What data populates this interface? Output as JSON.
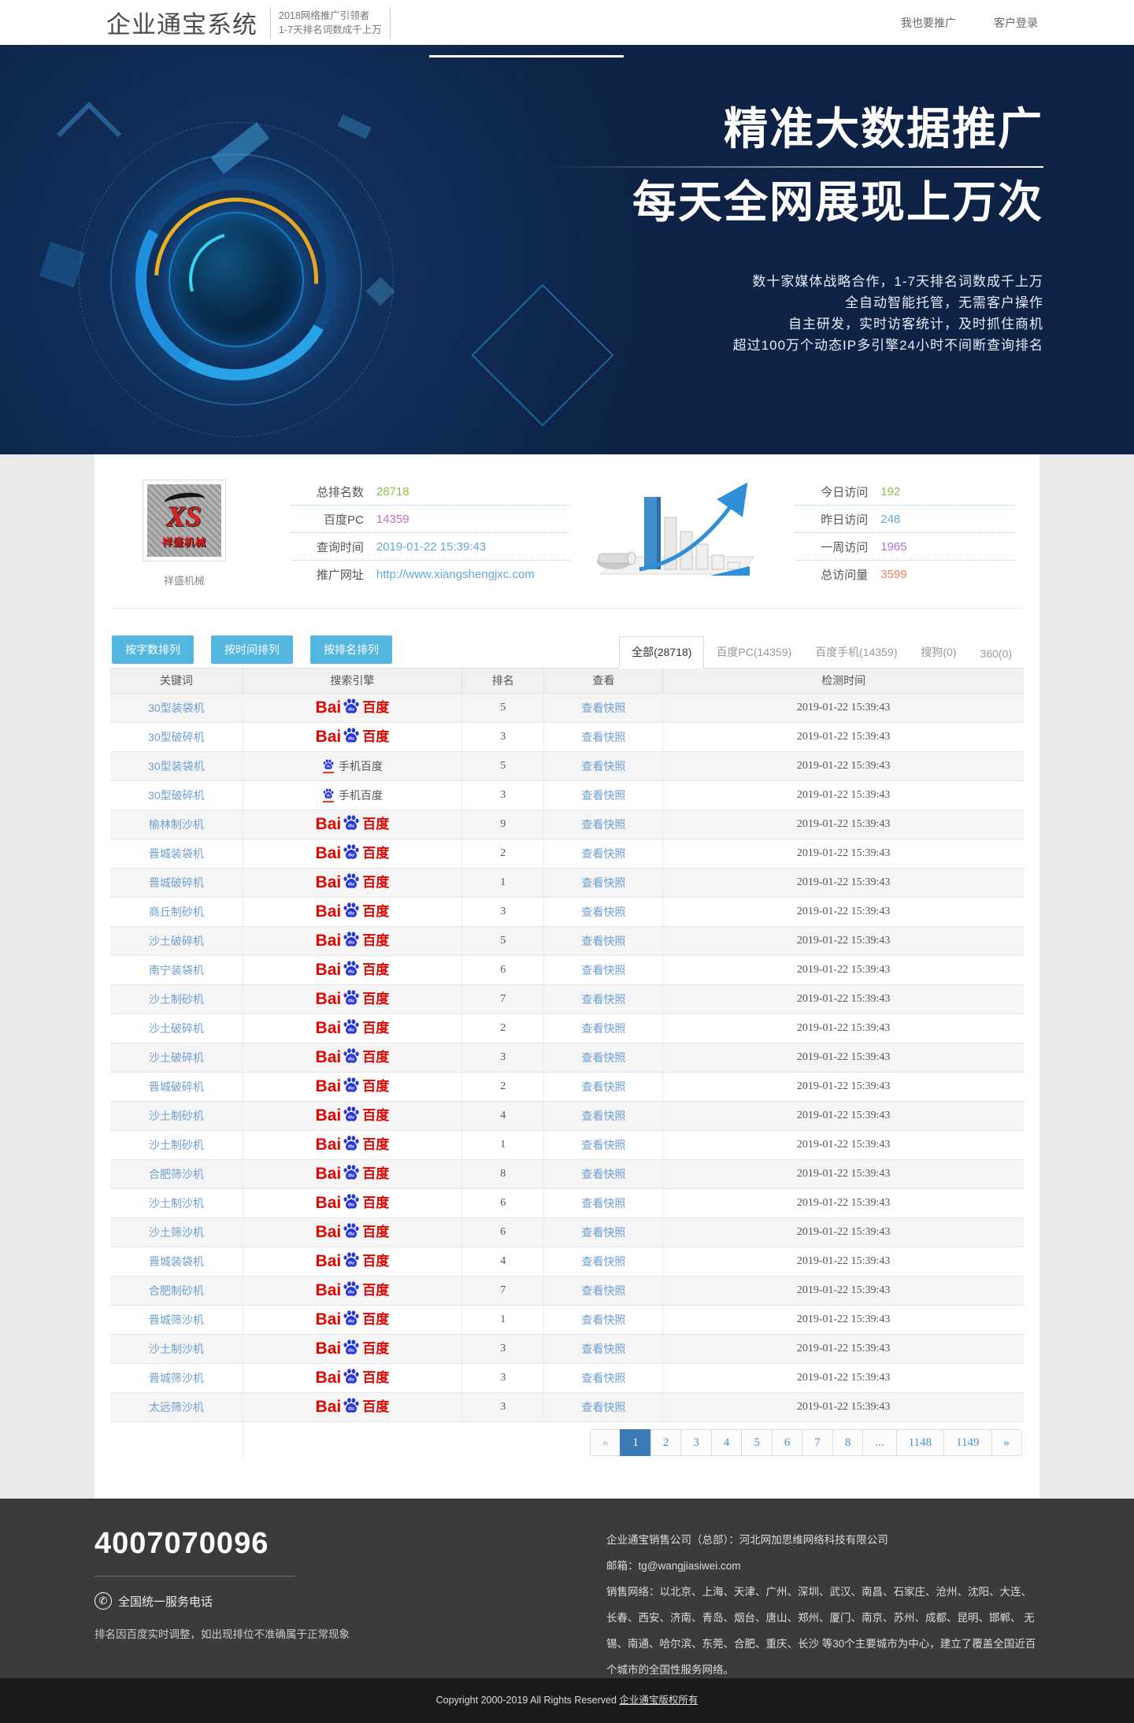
{
  "header": {
    "logo": "企业通宝系统",
    "tagline_line1": "2018网络推广引领者",
    "tagline_line2": "1-7天排名词数成千上万",
    "nav": [
      {
        "label": "我也要推广"
      },
      {
        "label": "客户登录"
      }
    ]
  },
  "hero": {
    "headline1": "精准大数据推广",
    "headline2": "每天全网展现上万次",
    "desc_lines": [
      "数十家媒体战略合作，1-7天排名词数成千上万",
      "全自动智能托管，无需客户操作",
      "自主研发，实时访客统计，及时抓住商机",
      "超过100万个动态IP多引擎24小时不间断查询排名"
    ]
  },
  "stats": {
    "logo_text": "XS",
    "logo_caption": "祥盛机械",
    "site_name": "祥盛机械",
    "left": [
      {
        "label": "总排名数",
        "value": "28718",
        "color": "#8fbf45"
      },
      {
        "label": "百度PC",
        "value": "14359",
        "color": "#c46ec4"
      },
      {
        "label": "查询时间",
        "value": "2019-01-22 15:39:43",
        "color": "#64a8dc"
      },
      {
        "label": "推广网址",
        "value": "http://www.xiangshengjxc.com",
        "color": "#64a8dc"
      }
    ],
    "right": [
      {
        "label": "今日访问",
        "value": "192",
        "color": "#8fbf45"
      },
      {
        "label": "昨日访问",
        "value": "248",
        "color": "#64a8dc"
      },
      {
        "label": "一周访问",
        "value": "1965",
        "color": "#b173d8"
      },
      {
        "label": "总访问量",
        "value": "3599",
        "color": "#f07d5a"
      }
    ]
  },
  "toolbar": {
    "sort_buttons": [
      "按字数排列",
      "按时间排列",
      "按排名排列"
    ],
    "tabs": [
      {
        "label": "全部(28718)",
        "active": true
      },
      {
        "label": "百度PC(14359)",
        "active": false
      },
      {
        "label": "百度手机(14359)",
        "active": false
      },
      {
        "label": "搜狗(0)",
        "active": false
      },
      {
        "label": "360(0)",
        "active": false
      }
    ]
  },
  "table": {
    "headers": [
      "关键词",
      "搜索引擎",
      "排名",
      "查看",
      "检测时间"
    ],
    "snapshot_label": "查看快照",
    "engines": {
      "baidu_pc": {
        "bai": "Bai",
        "du": "du",
        "cn": "百度"
      },
      "baidu_mobile": "手机百度"
    },
    "rows": [
      {
        "keyword": "30型装袋机",
        "engine": "pc",
        "rank": "5",
        "time": "2019-01-22 15:39:43"
      },
      {
        "keyword": "30型破碎机",
        "engine": "pc",
        "rank": "3",
        "time": "2019-01-22 15:39:43"
      },
      {
        "keyword": "30型装袋机",
        "engine": "mobile",
        "rank": "5",
        "time": "2019-01-22 15:39:43"
      },
      {
        "keyword": "30型破碎机",
        "engine": "mobile",
        "rank": "3",
        "time": "2019-01-22 15:39:43"
      },
      {
        "keyword": "榆林制沙机",
        "engine": "pc",
        "rank": "9",
        "time": "2019-01-22 15:39:43"
      },
      {
        "keyword": "晋城装袋机",
        "engine": "pc",
        "rank": "2",
        "time": "2019-01-22 15:39:43"
      },
      {
        "keyword": "晋城破碎机",
        "engine": "pc",
        "rank": "1",
        "time": "2019-01-22 15:39:43"
      },
      {
        "keyword": "商丘制砂机",
        "engine": "pc",
        "rank": "3",
        "time": "2019-01-22 15:39:43"
      },
      {
        "keyword": "沙土破碎机",
        "engine": "pc",
        "rank": "5",
        "time": "2019-01-22 15:39:43"
      },
      {
        "keyword": "南宁装袋机",
        "engine": "pc",
        "rank": "6",
        "time": "2019-01-22 15:39:43"
      },
      {
        "keyword": "沙土制砂机",
        "engine": "pc",
        "rank": "7",
        "time": "2019-01-22 15:39:43"
      },
      {
        "keyword": "沙土破碎机",
        "engine": "pc",
        "rank": "2",
        "time": "2019-01-22 15:39:43"
      },
      {
        "keyword": "沙土破碎机",
        "engine": "pc",
        "rank": "3",
        "time": "2019-01-22 15:39:43"
      },
      {
        "keyword": "晋城破碎机",
        "engine": "pc",
        "rank": "2",
        "time": "2019-01-22 15:39:43"
      },
      {
        "keyword": "沙土制砂机",
        "engine": "pc",
        "rank": "4",
        "time": "2019-01-22 15:39:43"
      },
      {
        "keyword": "沙土制砂机",
        "engine": "pc",
        "rank": "1",
        "time": "2019-01-22 15:39:43"
      },
      {
        "keyword": "合肥筛沙机",
        "engine": "pc",
        "rank": "8",
        "time": "2019-01-22 15:39:43"
      },
      {
        "keyword": "沙土制沙机",
        "engine": "pc",
        "rank": "6",
        "time": "2019-01-22 15:39:43"
      },
      {
        "keyword": "沙土筛沙机",
        "engine": "pc",
        "rank": "6",
        "time": "2019-01-22 15:39:43"
      },
      {
        "keyword": "晋城装袋机",
        "engine": "pc",
        "rank": "4",
        "time": "2019-01-22 15:39:43"
      },
      {
        "keyword": "合肥制砂机",
        "engine": "pc",
        "rank": "7",
        "time": "2019-01-22 15:39:43"
      },
      {
        "keyword": "晋城筛沙机",
        "engine": "pc",
        "rank": "1",
        "time": "2019-01-22 15:39:43"
      },
      {
        "keyword": "沙土制沙机",
        "engine": "pc",
        "rank": "3",
        "time": "2019-01-22 15:39:43"
      },
      {
        "keyword": "晋城筛沙机",
        "engine": "pc",
        "rank": "3",
        "time": "2019-01-22 15:39:43"
      },
      {
        "keyword": "太远筛沙机",
        "engine": "pc",
        "rank": "3",
        "time": "2019-01-22 15:39:43"
      }
    ]
  },
  "pagination": {
    "items": [
      "«",
      "1",
      "2",
      "3",
      "4",
      "5",
      "6",
      "7",
      "8",
      "...",
      "1148",
      "1149",
      "»"
    ],
    "active": "1"
  },
  "footer": {
    "phone": "4007070096",
    "service_label": "全国统一服务电话",
    "disclaimer": "排名因百度实时调整，如出现排位不准确属于正常现象",
    "company_line": "企业通宝销售公司（总部）：河北网加思维网络科技有限公司",
    "email_line": "邮箱：tg@wangjiasiwei.com",
    "network_line": "销售网络：以北京、上海、天津、广州、深圳、武汉、南昌、石家庄、沧州、沈阳、大连、长春、西安、济南、青岛、烟台、唐山、郑州、厦门、南京、苏州、成都、昆明、邯郸、 无锡、南通、哈尔滨、东莞、合肥、重庆、长沙 等30个主要城市为中心，建立了覆盖全国近百个城市的全国性服务网络。"
  },
  "copyright": {
    "text": "Copyright 2000-2019 All Rights Reserved",
    "link": "企业通宝版权所有"
  }
}
